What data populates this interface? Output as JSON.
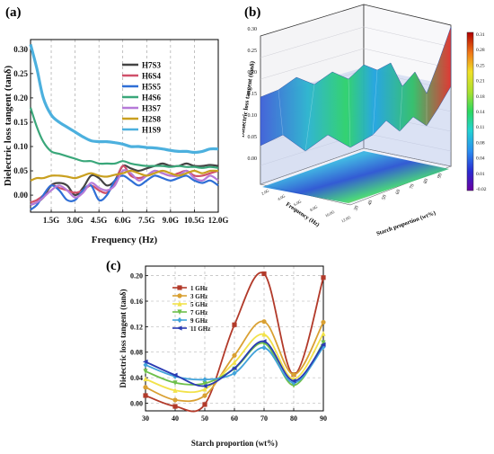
{
  "panels": {
    "a": "(a)",
    "b": "(b)",
    "c": "(c)"
  },
  "colors": {
    "H7S3": "#444444",
    "H6S4": "#d0506a",
    "H5S5": "#2f6fd6",
    "H4S6": "#3aa77a",
    "H3S7": "#b67ad8",
    "H2S8": "#c9a020",
    "H1S9": "#4cb0de",
    "1GHz": "#b23a2a",
    "3GHz": "#d9a032",
    "5GHz": "#f2e24a",
    "7GHz": "#6ec04b",
    "9GHz": "#42a3da",
    "11GHz": "#2a3bb3"
  },
  "chart_data": [
    {
      "type": "line",
      "xlabel": "Frequency (Hz)",
      "ylabel": "Dielectric loss tangent (tanδ)",
      "x_ticklabels": [
        "1.5G",
        "3.0G",
        "4.5G",
        "6.0G",
        "7.5G",
        "9.0G",
        "10.5G",
        "12.0G"
      ],
      "x_ticks": [
        1.5,
        3.0,
        4.5,
        6.0,
        7.5,
        9.0,
        10.5,
        12.0
      ],
      "y_ticklabels": [
        "0.00",
        "0.05",
        "0.10",
        "0.15",
        "0.20",
        "0.25",
        "0.30"
      ],
      "y_ticks": [
        0.0,
        0.05,
        0.1,
        0.15,
        0.2,
        0.25,
        0.3
      ],
      "xlim": [
        0.2,
        12.0
      ],
      "ylim": [
        -0.035,
        0.32
      ],
      "grid": "dashed vertical",
      "legend_position": "top-right",
      "x": [
        0.2,
        0.6,
        1.0,
        1.5,
        2.0,
        2.5,
        3.0,
        3.5,
        4.0,
        4.5,
        5.0,
        5.5,
        6.0,
        6.5,
        7.0,
        7.5,
        8.0,
        8.5,
        9.0,
        9.5,
        10.0,
        10.5,
        11.0,
        11.5,
        12.0
      ],
      "series": [
        {
          "name": "H7S3",
          "values": [
            -0.02,
            -0.015,
            -0.005,
            0.02,
            0.025,
            0.02,
            0.0,
            0.015,
            0.04,
            0.035,
            0.02,
            0.03,
            0.06,
            0.055,
            0.05,
            0.055,
            0.06,
            0.065,
            0.06,
            0.06,
            0.065,
            0.06,
            0.06,
            0.062,
            0.06
          ]
        },
        {
          "name": "H6S4",
          "values": [
            -0.015,
            -0.01,
            0.0,
            0.02,
            0.015,
            0.01,
            0.005,
            0.01,
            0.02,
            0.01,
            0.005,
            0.025,
            0.06,
            0.04,
            0.035,
            0.04,
            0.05,
            0.045,
            0.04,
            0.045,
            0.05,
            0.04,
            0.04,
            0.045,
            0.05
          ]
        },
        {
          "name": "H5S5",
          "values": [
            -0.03,
            -0.02,
            0.0,
            0.02,
            0.01,
            -0.01,
            -0.01,
            0.01,
            0.02,
            -0.01,
            0.0,
            0.03,
            0.04,
            0.03,
            0.02,
            0.03,
            0.04,
            0.035,
            0.03,
            0.035,
            0.04,
            0.03,
            0.025,
            0.03,
            0.02
          ]
        },
        {
          "name": "H4S6",
          "values": [
            0.18,
            0.14,
            0.11,
            0.09,
            0.085,
            0.08,
            0.075,
            0.07,
            0.07,
            0.065,
            0.065,
            0.065,
            0.07,
            0.065,
            0.062,
            0.06,
            0.06,
            0.06,
            0.058,
            0.06,
            0.058,
            0.058,
            0.056,
            0.058,
            0.056
          ]
        },
        {
          "name": "H3S7",
          "values": [
            -0.02,
            -0.015,
            -0.005,
            0.01,
            0.02,
            0.01,
            -0.005,
            0.005,
            0.025,
            0.015,
            0.01,
            0.02,
            0.05,
            0.045,
            0.03,
            0.04,
            0.05,
            0.045,
            0.04,
            0.04,
            0.05,
            0.035,
            0.03,
            0.04,
            0.03
          ]
        },
        {
          "name": "H2S8",
          "values": [
            0.03,
            0.035,
            0.035,
            0.04,
            0.04,
            0.038,
            0.035,
            0.04,
            0.045,
            0.04,
            0.038,
            0.042,
            0.045,
            0.05,
            0.045,
            0.04,
            0.045,
            0.05,
            0.045,
            0.04,
            0.045,
            0.05,
            0.045,
            0.05,
            0.05
          ]
        },
        {
          "name": "H1S9",
          "values": [
            0.31,
            0.26,
            0.2,
            0.165,
            0.15,
            0.14,
            0.13,
            0.12,
            0.112,
            0.11,
            0.11,
            0.108,
            0.105,
            0.1,
            0.1,
            0.098,
            0.097,
            0.095,
            0.092,
            0.09,
            0.09,
            0.088,
            0.09,
            0.095,
            0.095
          ]
        }
      ]
    },
    {
      "type": "surface3d",
      "zlabel": "Dielectric loss tangent (tanδ)",
      "xlabel": "Starch proportion (wt%)",
      "ylabel": "Frequency (Hz)",
      "z_ticklabels": [
        "0.00",
        "0.05",
        "0.10",
        "0.15",
        "0.20",
        "0.25",
        "0.30"
      ],
      "x_ticklabels": [
        "30",
        "40",
        "50",
        "60",
        "70",
        "80",
        "90"
      ],
      "y_ticklabels": [
        "2.0G",
        "4.0G",
        "6.0G",
        "8.0G",
        "10.0G",
        "12.0G"
      ],
      "colorbar_ticklabels": [
        "0.31",
        "0.28",
        "0.25",
        "0.21",
        "0.18",
        "0.14",
        "0.11",
        "0.08",
        "0.04",
        "0.01",
        "-0.02"
      ],
      "colorbar_range": [
        -0.02,
        0.31
      ]
    },
    {
      "type": "line",
      "xlabel": "Starch proportion (wt%)",
      "ylabel": "Dielectric loss tangent (tanδ)",
      "categories": [
        30,
        40,
        50,
        60,
        70,
        80,
        90
      ],
      "x_ticklabels": [
        "30",
        "40",
        "50",
        "60",
        "70",
        "80",
        "90"
      ],
      "y_ticks": [
        0.0,
        0.04,
        0.08,
        0.12,
        0.16,
        0.2
      ],
      "y_ticklabels": [
        "0.00",
        "0.04",
        "0.08",
        "0.12",
        "0.16",
        "0.20"
      ],
      "xlim": [
        30,
        90
      ],
      "ylim": [
        -0.012,
        0.215
      ],
      "grid": "dashed",
      "legend_position": "top-left",
      "series": [
        {
          "name": "1 GHz",
          "values": [
            0.012,
            -0.005,
            -0.002,
            0.123,
            0.203,
            0.045,
            0.197
          ]
        },
        {
          "name": "3 GHz",
          "values": [
            0.025,
            0.005,
            0.012,
            0.075,
            0.128,
            0.045,
            0.127
          ]
        },
        {
          "name": "5 GHz",
          "values": [
            0.038,
            0.02,
            0.022,
            0.064,
            0.108,
            0.038,
            0.109
          ]
        },
        {
          "name": "7 GHz",
          "values": [
            0.05,
            0.032,
            0.031,
            0.054,
            0.094,
            0.028,
            0.095
          ]
        },
        {
          "name": "9 GHz",
          "values": [
            0.06,
            0.042,
            0.037,
            0.047,
            0.087,
            0.032,
            0.088
          ]
        },
        {
          "name": "11 GHz",
          "values": [
            0.065,
            0.044,
            0.027,
            0.055,
            0.097,
            0.035,
            0.092
          ]
        }
      ]
    }
  ]
}
